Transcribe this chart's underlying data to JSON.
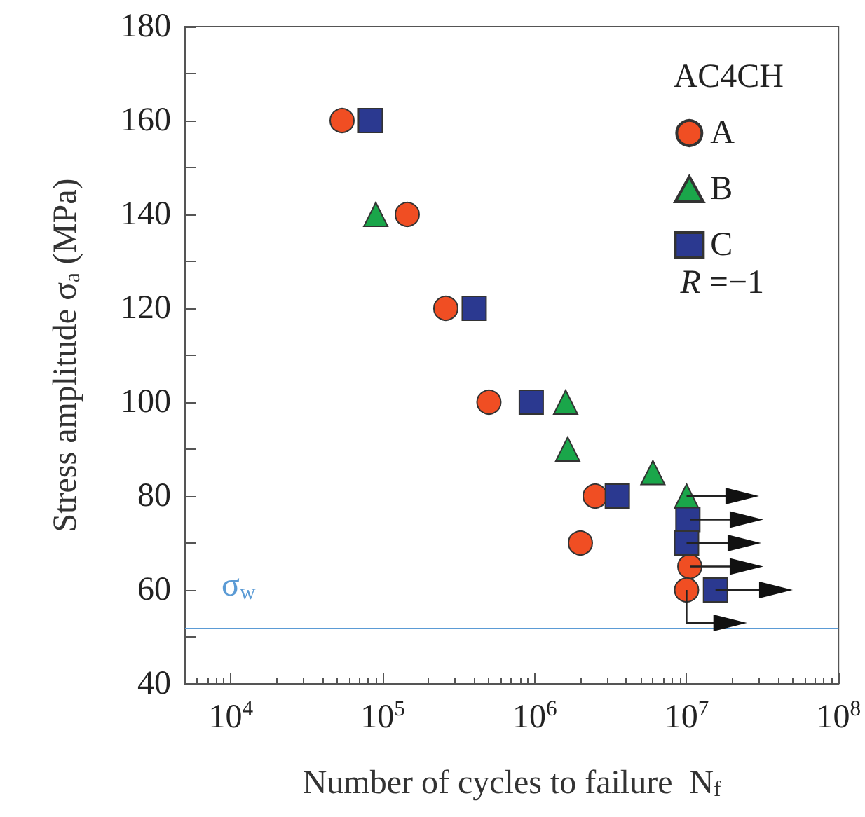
{
  "chart_data": {
    "type": "scatter",
    "xlabel": "Number of cycles to failure  N$_{f}$",
    "ylabel": "Stress amplitude σ$_{a}$ (MPa)",
    "legend_title": "AC4CH",
    "annotations": [
      "R =−1"
    ],
    "log": "x",
    "xlim": [
      5000,
      100000000
    ],
    "xticks": [
      {
        "value": 10000,
        "label": "10$^{4}$"
      },
      {
        "value": 100000,
        "label": "10$^{5}$"
      },
      {
        "value": 1000000,
        "label": "10$^{6}$"
      },
      {
        "value": 10000000,
        "label": "10$^{7}$"
      },
      {
        "value": 100000000,
        "label": "10$^{8}$"
      }
    ],
    "ylim": [
      40,
      180
    ],
    "yticks": [
      40,
      {
        "value": 50,
        "label": null
      },
      60,
      {
        "value": 70,
        "label": null
      },
      80,
      {
        "value": 90,
        "label": null
      },
      100,
      {
        "value": 110,
        "label": null
      },
      120,
      {
        "value": 130,
        "label": null
      },
      140,
      {
        "value": 150,
        "label": null
      },
      160,
      {
        "value": 170,
        "label": null
      },
      180
    ],
    "grid": false,
    "legend": "top right",
    "ref_lines": [
      {
        "axis": "y",
        "value": 52,
        "label": "σ$_{w}$",
        "color": "#5b9bd5"
      }
    ],
    "series": [
      {
        "name": "A",
        "color": "#f04e23",
        "marker": "circle",
        "x": [
          54000,
          145000,
          260000,
          500000,
          2500000,
          2000000,
          10500000,
          10000000
        ],
        "values": [
          160,
          140,
          120,
          100,
          80,
          70,
          65,
          60
        ]
      },
      {
        "name": "B",
        "color": "#1aa64a",
        "marker": "triangle",
        "x": [
          null,
          90000,
          null,
          1600000,
          1650000,
          6000000,
          10000000
        ],
        "values": [
          null,
          140,
          null,
          100,
          90,
          85,
          80
        ]
      },
      {
        "name": "C",
        "color": "#2b3990",
        "marker": "square",
        "x": [
          83000,
          400000,
          950000,
          3500000,
          10200000,
          10000000,
          15500000
        ],
        "values": [
          160,
          120,
          100,
          80,
          75,
          70,
          60
        ]
      }
    ]
  }
}
